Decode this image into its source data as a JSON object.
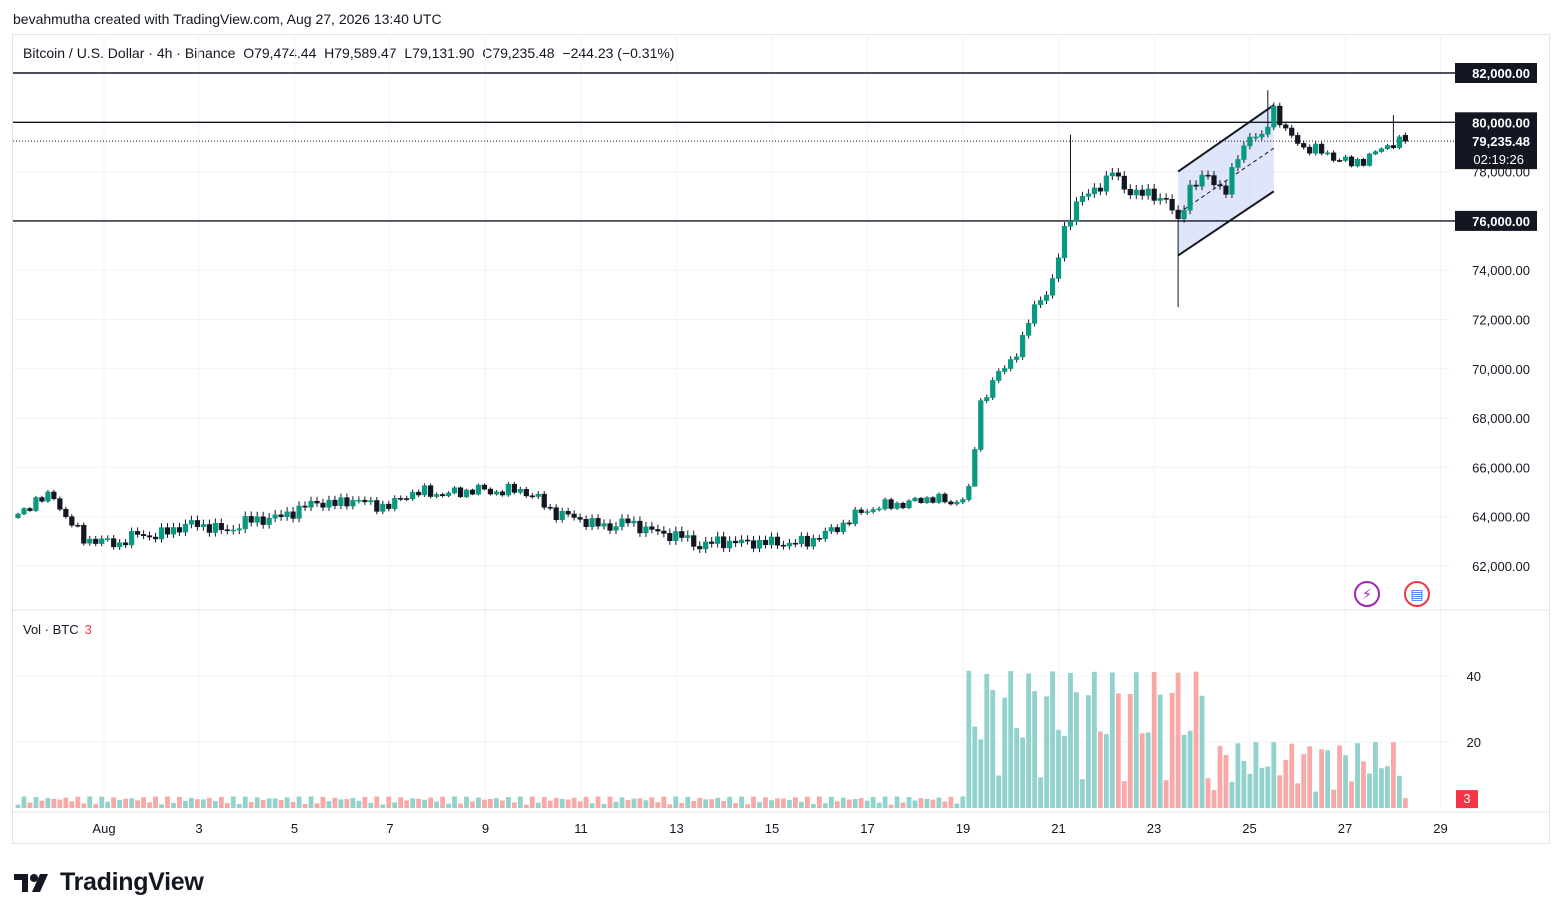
{
  "attribution": "bevahmutha created with TradingView.com, Aug 27, 2026 13:40 UTC",
  "header": {
    "symbol": "Bitcoin / U.S. Dollar · 4h · Binance",
    "open": "O79,474.44",
    "high": "H79,589.47",
    "low": "L79,131.90",
    "close": "C79,235.48",
    "change": "−244.23 (−0.31%)"
  },
  "volume_legend": {
    "label": "Vol · BTC",
    "value": "3"
  },
  "logo": {
    "text": "TradingView"
  },
  "colors": {
    "up": "#089981",
    "down": "#f23645",
    "candle_up_body": "#ffffff",
    "candle_stroke": "#131722",
    "vol_up": "#92d2cc",
    "vol_down": "#f7a9a7",
    "channel_fill": "#c9d4f7"
  },
  "chart_data": {
    "type": "candlestick",
    "timeframe": "4h",
    "price_axis": {
      "ticks": [
        "62,000.00",
        "64,000.00",
        "66,000.00",
        "68,000.00",
        "70,000.00",
        "72,000.00",
        "74,000.00",
        "76,000.00",
        "78,000.00",
        "80,000.00",
        "82,000.00"
      ],
      "range": [
        61000,
        83000
      ]
    },
    "x_axis": {
      "ticks": [
        "Aug",
        "3",
        "5",
        "7",
        "9",
        "11",
        "13",
        "15",
        "17",
        "19",
        "21",
        "23",
        "25",
        "27",
        "29"
      ]
    },
    "levels": [
      {
        "price": 82000,
        "label": "82,000.00"
      },
      {
        "price": 80000,
        "label": "80,000.00"
      },
      {
        "price": 76000,
        "label": "76,000.00"
      }
    ],
    "last_price": {
      "price": 79235.48,
      "label": "79,235.48",
      "countdown": "02:19:26"
    },
    "volume_axis": {
      "ticks": [
        "20",
        "40"
      ],
      "range": [
        0,
        56
      ]
    },
    "volume_last": "3",
    "anchors": [
      [
        0,
        64000
      ],
      [
        3,
        64700
      ],
      [
        6,
        64800
      ],
      [
        8,
        64000
      ],
      [
        11,
        63100
      ],
      [
        14,
        63000
      ],
      [
        17,
        62900
      ],
      [
        20,
        63300
      ],
      [
        23,
        63200
      ],
      [
        26,
        63500
      ],
      [
        29,
        63700
      ],
      [
        32,
        63600
      ],
      [
        35,
        63400
      ],
      [
        38,
        63800
      ],
      [
        41,
        63900
      ],
      [
        44,
        64000
      ],
      [
        47,
        64300
      ],
      [
        50,
        64600
      ],
      [
        53,
        64500
      ],
      [
        56,
        64700
      ],
      [
        59,
        64500
      ],
      [
        62,
        64400
      ],
      [
        65,
        64900
      ],
      [
        68,
        65000
      ],
      [
        71,
        64900
      ],
      [
        74,
        65000
      ],
      [
        77,
        65100
      ],
      [
        80,
        65000
      ],
      [
        84,
        65100
      ],
      [
        87,
        64700
      ],
      [
        90,
        64100
      ],
      [
        93,
        64000
      ],
      [
        96,
        63700
      ],
      [
        99,
        63600
      ],
      [
        102,
        63800
      ],
      [
        105,
        63500
      ],
      [
        108,
        63300
      ],
      [
        111,
        63200
      ],
      [
        114,
        62800
      ],
      [
        117,
        63000
      ],
      [
        120,
        62950
      ],
      [
        123,
        62950
      ],
      [
        126,
        62950
      ],
      [
        129,
        62900
      ],
      [
        132,
        63000
      ],
      [
        135,
        63300
      ],
      [
        138,
        63700
      ],
      [
        141,
        64200
      ],
      [
        144,
        64400
      ],
      [
        147,
        64500
      ],
      [
        150,
        64600
      ],
      [
        153,
        64800
      ],
      [
        156,
        64500
      ],
      [
        159,
        65000
      ],
      [
        161,
        68600
      ],
      [
        163,
        69500
      ],
      [
        166,
        70300
      ],
      [
        168,
        71200
      ],
      [
        170,
        72500
      ],
      [
        173,
        73500
      ],
      [
        175,
        75600
      ],
      [
        177,
        76800
      ],
      [
        180,
        77200
      ],
      [
        183,
        78000
      ],
      [
        185,
        77300
      ],
      [
        188,
        77100
      ],
      [
        192,
        76900
      ],
      [
        194,
        75900
      ],
      [
        196,
        77400
      ],
      [
        199,
        77800
      ],
      [
        202,
        77200
      ],
      [
        204,
        78600
      ],
      [
        206,
        79500
      ],
      [
        208,
        79300
      ],
      [
        210,
        80600
      ],
      [
        212,
        79600
      ],
      [
        215,
        79000
      ],
      [
        218,
        78800
      ],
      [
        220,
        78600
      ],
      [
        223,
        78300
      ],
      [
        226,
        78600
      ],
      [
        228,
        78900
      ],
      [
        230,
        79200
      ],
      [
        232,
        79235
      ]
    ],
    "channel": {
      "lower_start": [
        194,
        74600
      ],
      "lower_end": [
        210,
        77200
      ],
      "upper_start": [
        194,
        78000
      ],
      "upper_end": [
        210,
        80700
      ]
    }
  }
}
